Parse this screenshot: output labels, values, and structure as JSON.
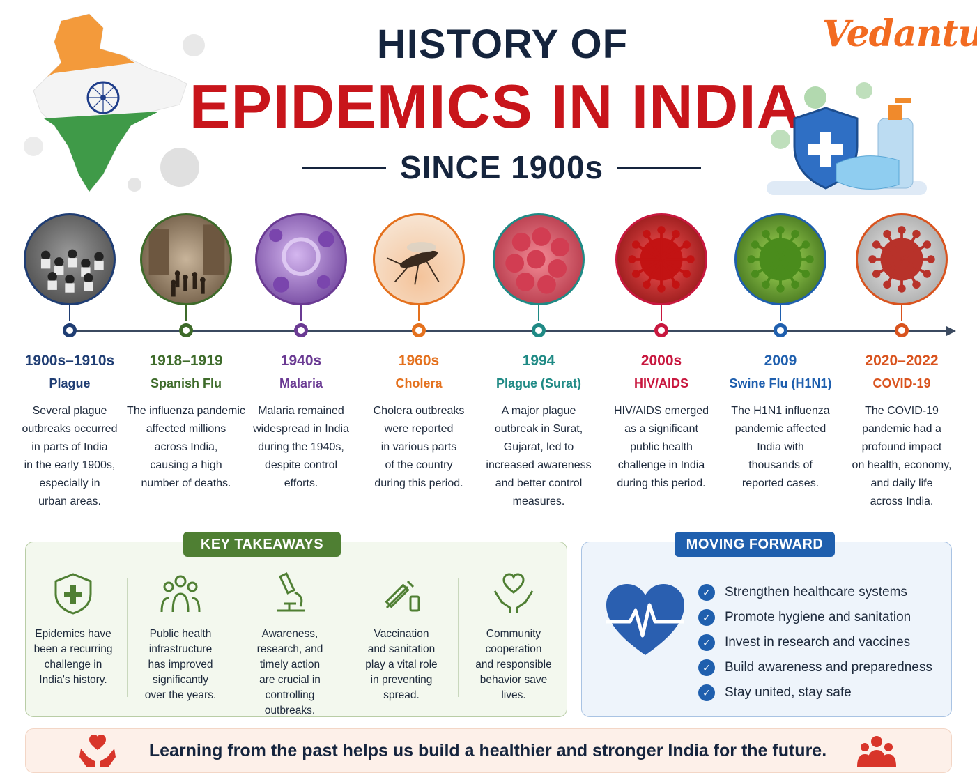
{
  "brand": "Vedantu",
  "title": {
    "line1": "HISTORY OF",
    "line2": "EPIDEMICS IN INDIA",
    "line3": "SINCE 1900s"
  },
  "timeline": [
    {
      "year": "1900s–1910s",
      "name": "Plague",
      "desc": [
        "Several plague",
        "outbreaks occurred",
        "in parts of India",
        "in the early 1900s,",
        "especially in",
        "urban areas."
      ],
      "color": "#1f3d73"
    },
    {
      "year": "1918–1919",
      "name": "Spanish Flu",
      "desc": [
        "The influenza pandemic",
        "affected millions",
        "across India,",
        "causing a high",
        "number of deaths."
      ],
      "color": "#3e6b2a"
    },
    {
      "year": "1940s",
      "name": "Malaria",
      "desc": [
        "Malaria remained",
        "widespread in India",
        "during the 1940s,",
        "despite control",
        "efforts."
      ],
      "color": "#6a3a93"
    },
    {
      "year": "1960s",
      "name": "Cholera",
      "desc": [
        "Cholera outbreaks",
        "were reported",
        "in various parts",
        "of the country",
        "during this period."
      ],
      "color": "#e4711e"
    },
    {
      "year": "1994",
      "name": "Plague (Surat)",
      "desc": [
        "A major plague",
        "outbreak in Surat,",
        "Gujarat, led to",
        "increased awareness",
        "and better control",
        "measures."
      ],
      "color": "#1f8a85"
    },
    {
      "year": "2000s",
      "name": "HIV/AIDS",
      "desc": [
        "HIV/AIDS emerged",
        "as a significant",
        "public health",
        "challenge in India",
        "during this period."
      ],
      "color": "#c8173e"
    },
    {
      "year": "2009",
      "name": "Swine Flu (H1N1)",
      "desc": [
        "The H1N1 influenza",
        "pandemic affected",
        "India with",
        "thousands of",
        "reported cases."
      ],
      "color": "#1f5fae"
    },
    {
      "year": "2020–2022",
      "name": "COVID-19",
      "desc": [
        "The COVID-19",
        "pandemic had a",
        "profound impact",
        "on health, economy,",
        "and daily life",
        "across India."
      ],
      "color": "#d9531e"
    }
  ],
  "key_takeaways": {
    "title": "KEY TAKEAWAYS",
    "items": [
      {
        "icon": "shield-cross-icon",
        "text": [
          "Epidemics have",
          "been a recurring",
          "challenge in",
          "India's history."
        ]
      },
      {
        "icon": "people-group-icon",
        "text": [
          "Public health",
          "infrastructure",
          "has improved",
          "significantly",
          "over the years."
        ]
      },
      {
        "icon": "microscope-icon",
        "text": [
          "Awareness,",
          "research, and",
          "timely action",
          "are crucial in",
          "controlling",
          "outbreaks."
        ]
      },
      {
        "icon": "syringe-icon",
        "text": [
          "Vaccination",
          "and sanitation",
          "play a vital role",
          "in preventing",
          "spread."
        ]
      },
      {
        "icon": "hands-heart-icon",
        "text": [
          "Community",
          "cooperation",
          "and responsible",
          "behavior save",
          "lives."
        ]
      }
    ]
  },
  "moving_forward": {
    "title": "MOVING FORWARD",
    "items": [
      "Strengthen healthcare systems",
      "Promote hygiene and sanitation",
      "Invest in research and vaccines",
      "Build awareness and preparedness",
      "Stay united, stay safe"
    ]
  },
  "banner": "Learning from the past helps us build a healthier and stronger India for the future.",
  "colors": {
    "title_dark": "#15243d",
    "title_red": "#c8151b",
    "brand_orange": "#f26b21",
    "takeaway_green": "#4f7f33",
    "forward_blue": "#1f5fae",
    "banner_red": "#d8352a"
  }
}
